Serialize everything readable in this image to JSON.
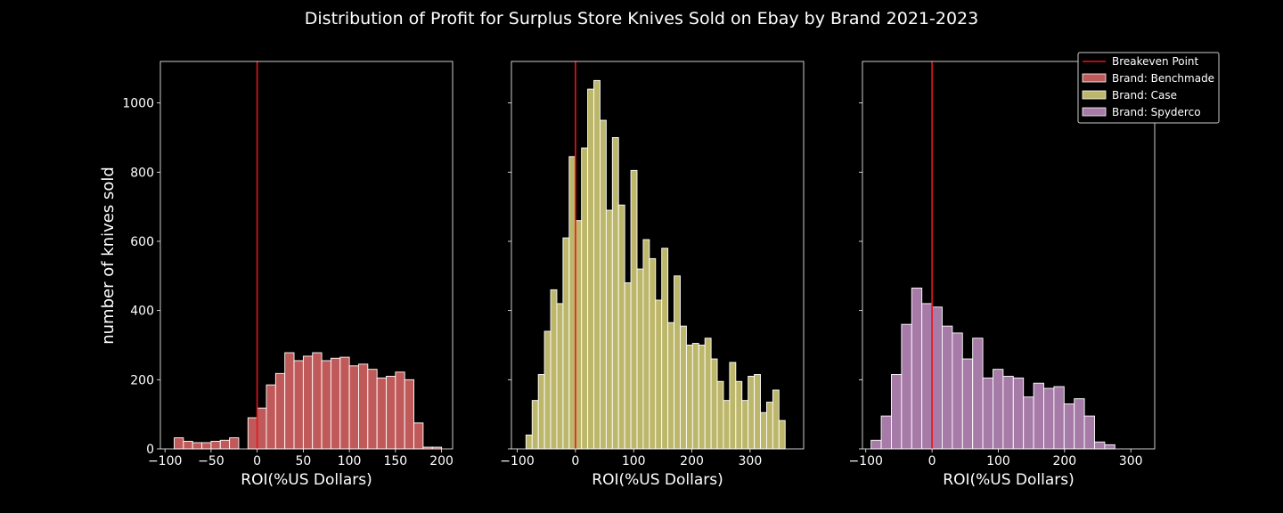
{
  "figure": {
    "title": "Distribution of Profit for Surplus Store Knives Sold on Ebay by Brand 2021-2023",
    "ylabel": "number of knives sold",
    "background": "#000000",
    "text_color": "#ffffff",
    "breakeven_color": "#e8141c"
  },
  "legend": {
    "placement": "top-right",
    "items": [
      {
        "label": "Breakeven Point",
        "kind": "line",
        "color": "#e8141c"
      },
      {
        "label": "Brand: Benchmade",
        "kind": "patch",
        "color": "#c05a5a"
      },
      {
        "label": "Brand: Case",
        "kind": "patch",
        "color": "#bdb76b"
      },
      {
        "label": "Brand: Spyderco",
        "kind": "patch",
        "color": "#a77ba8"
      }
    ]
  },
  "chart_data": [
    {
      "type": "histogram",
      "series_name": "Brand: Benchmade",
      "color": "#c05a5a",
      "xlabel": "ROI(%US Dollars)",
      "xlim": [
        -105,
        212
      ],
      "ylim": [
        0,
        1120
      ],
      "xticks": [
        -100,
        -50,
        0,
        50,
        100,
        150,
        200
      ],
      "xtick_labels": [
        "−100",
        "−50",
        "0",
        "50",
        "100",
        "150",
        "200"
      ],
      "yticks": [
        0,
        200,
        400,
        600,
        800,
        1000
      ],
      "ytick_labels": [
        "0",
        "200",
        "400",
        "600",
        "800",
        "1000"
      ],
      "breakeven_x": 0,
      "bin_start": -90,
      "bin_width": 10,
      "counts": [
        32,
        22,
        18,
        18,
        22,
        25,
        32,
        0,
        90,
        118,
        185,
        218,
        278,
        255,
        268,
        278,
        255,
        262,
        265,
        240,
        245,
        230,
        205,
        210,
        222,
        200,
        75,
        5,
        5
      ]
    },
    {
      "type": "histogram",
      "series_name": "Brand: Case",
      "color": "#bdb76b",
      "xlabel": "ROI(%US Dollars)",
      "xlim": [
        -110,
        392
      ],
      "ylim": [
        0,
        1120
      ],
      "xticks": [
        -100,
        0,
        100,
        200,
        300
      ],
      "xtick_labels": [
        "−100",
        "0",
        "100",
        "200",
        "300"
      ],
      "breakeven_x": 0,
      "bin_start": -85,
      "bin_width": 10.6,
      "counts": [
        40,
        140,
        215,
        340,
        460,
        420,
        610,
        845,
        660,
        870,
        1040,
        1065,
        950,
        690,
        900,
        705,
        480,
        805,
        520,
        605,
        550,
        430,
        580,
        365,
        500,
        355,
        300,
        305,
        300,
        320,
        260,
        195,
        140,
        250,
        195,
        140,
        210,
        215,
        105,
        135,
        170,
        82
      ]
    },
    {
      "type": "histogram",
      "series_name": "Brand: Spyderco",
      "color": "#a77ba8",
      "xlabel": "ROI(%US Dollars)",
      "xlim": [
        -105,
        336
      ],
      "ylim": [
        0,
        1120
      ],
      "xticks": [
        -100,
        0,
        100,
        200,
        300
      ],
      "xtick_labels": [
        "−100",
        "0",
        "100",
        "200",
        "300"
      ],
      "breakeven_x": 0,
      "bin_start": -92,
      "bin_width": 15.33,
      "counts": [
        25,
        95,
        215,
        360,
        465,
        420,
        410,
        355,
        335,
        260,
        320,
        205,
        230,
        210,
        205,
        150,
        190,
        175,
        180,
        130,
        145,
        95,
        20,
        12
      ]
    }
  ]
}
